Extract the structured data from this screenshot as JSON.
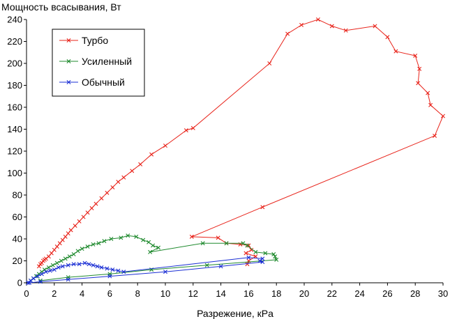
{
  "chart_data": {
    "type": "scatter",
    "ylabel": "Мощность всасывания, Вт",
    "xlabel": "Разрежение, кPa",
    "xlim": [
      0,
      30
    ],
    "ylim": [
      0,
      240
    ],
    "xticks": [
      0,
      2,
      4,
      6,
      8,
      10,
      12,
      14,
      16,
      18,
      20,
      22,
      24,
      26,
      28,
      30
    ],
    "yticks": [
      0,
      20,
      40,
      60,
      80,
      100,
      120,
      140,
      160,
      180,
      200,
      220,
      240
    ],
    "grid": false,
    "legend": "top-left",
    "series": [
      {
        "name": "Турбо",
        "color": "#e8231a",
        "points": [
          [
            0.9,
            15
          ],
          [
            1.0,
            17
          ],
          [
            1.1,
            18
          ],
          [
            1.2,
            20
          ],
          [
            1.3,
            21
          ],
          [
            1.4,
            22
          ],
          [
            1.6,
            24
          ],
          [
            1.8,
            27
          ],
          [
            2.0,
            30
          ],
          [
            2.2,
            33
          ],
          [
            2.4,
            36
          ],
          [
            2.6,
            39
          ],
          [
            2.8,
            42
          ],
          [
            3.0,
            45
          ],
          [
            3.2,
            48
          ],
          [
            3.5,
            52
          ],
          [
            3.8,
            56
          ],
          [
            4.1,
            60
          ],
          [
            4.4,
            64
          ],
          [
            4.7,
            68
          ],
          [
            5.0,
            72
          ],
          [
            5.4,
            77
          ],
          [
            5.8,
            82
          ],
          [
            6.2,
            87
          ],
          [
            6.6,
            92
          ],
          [
            7.0,
            96
          ],
          [
            7.6,
            102
          ],
          [
            8.2,
            108
          ],
          [
            9.0,
            117
          ],
          [
            10.0,
            125
          ],
          [
            11.5,
            139
          ],
          [
            12.0,
            141
          ],
          [
            17.5,
            200
          ],
          [
            18.8,
            227
          ],
          [
            19.8,
            235
          ],
          [
            21.0,
            240
          ],
          [
            22.0,
            234
          ],
          [
            23.0,
            230
          ],
          [
            25.1,
            234
          ],
          [
            26.0,
            224
          ],
          [
            26.6,
            211
          ],
          [
            28.0,
            207
          ],
          [
            28.3,
            195
          ],
          [
            28.2,
            182
          ],
          [
            28.9,
            173
          ],
          [
            29.1,
            162
          ],
          [
            30.0,
            152
          ],
          [
            29.4,
            134
          ],
          [
            17.0,
            69
          ],
          [
            11.9,
            42
          ],
          [
            13.8,
            41
          ],
          [
            14.4,
            36
          ],
          [
            15.4,
            35
          ],
          [
            16.0,
            34
          ],
          [
            16.2,
            30
          ],
          [
            15.8,
            27
          ],
          [
            16.5,
            24
          ],
          [
            16.0,
            20
          ],
          [
            15.9,
            17
          ]
        ]
      },
      {
        "name": "Усиленный",
        "color": "#1f8a2e",
        "points": [
          [
            0.3,
            2
          ],
          [
            0.5,
            4
          ],
          [
            0.7,
            6
          ],
          [
            0.9,
            8
          ],
          [
            1.1,
            10
          ],
          [
            1.3,
            12
          ],
          [
            1.6,
            14
          ],
          [
            1.9,
            16
          ],
          [
            2.2,
            18
          ],
          [
            2.5,
            20
          ],
          [
            2.8,
            22
          ],
          [
            3.1,
            24
          ],
          [
            3.4,
            26
          ],
          [
            3.7,
            29
          ],
          [
            4.0,
            31
          ],
          [
            4.4,
            33
          ],
          [
            4.8,
            35
          ],
          [
            5.2,
            36
          ],
          [
            5.6,
            38
          ],
          [
            6.1,
            40
          ],
          [
            6.8,
            41
          ],
          [
            7.3,
            43
          ],
          [
            7.9,
            42
          ],
          [
            8.4,
            39
          ],
          [
            8.8,
            37
          ],
          [
            9.1,
            34
          ],
          [
            9.5,
            32
          ],
          [
            8.9,
            28
          ],
          [
            12.7,
            36
          ],
          [
            14.4,
            36
          ],
          [
            15.6,
            36
          ],
          [
            15.9,
            34
          ],
          [
            16.5,
            28
          ],
          [
            17.2,
            27
          ],
          [
            17.8,
            26
          ],
          [
            17.9,
            24
          ],
          [
            18.0,
            21
          ],
          [
            13.0,
            16
          ],
          [
            9.0,
            12
          ],
          [
            6.0,
            8
          ],
          [
            3.0,
            5
          ],
          [
            1.0,
            2
          ]
        ]
      },
      {
        "name": "Обычный",
        "color": "#1b2fd4",
        "points": [
          [
            0.1,
            0
          ],
          [
            0.3,
            2
          ],
          [
            0.5,
            4
          ],
          [
            0.8,
            6
          ],
          [
            1.1,
            8
          ],
          [
            1.4,
            10
          ],
          [
            1.7,
            11
          ],
          [
            2.0,
            12
          ],
          [
            2.3,
            14
          ],
          [
            2.6,
            15
          ],
          [
            3.0,
            16
          ],
          [
            3.4,
            17
          ],
          [
            3.8,
            17
          ],
          [
            4.2,
            18
          ],
          [
            4.5,
            17
          ],
          [
            4.8,
            16
          ],
          [
            5.1,
            15
          ],
          [
            5.4,
            14
          ],
          [
            5.8,
            13
          ],
          [
            6.2,
            12
          ],
          [
            6.6,
            11
          ],
          [
            7.0,
            10
          ],
          [
            16.0,
            23
          ],
          [
            17.0,
            22
          ],
          [
            16.8,
            20
          ],
          [
            17.0,
            19
          ],
          [
            14.0,
            15
          ],
          [
            10.0,
            10
          ],
          [
            6.0,
            6
          ],
          [
            3.0,
            3
          ],
          [
            1.0,
            1
          ],
          [
            0.2,
            0
          ]
        ]
      }
    ]
  }
}
